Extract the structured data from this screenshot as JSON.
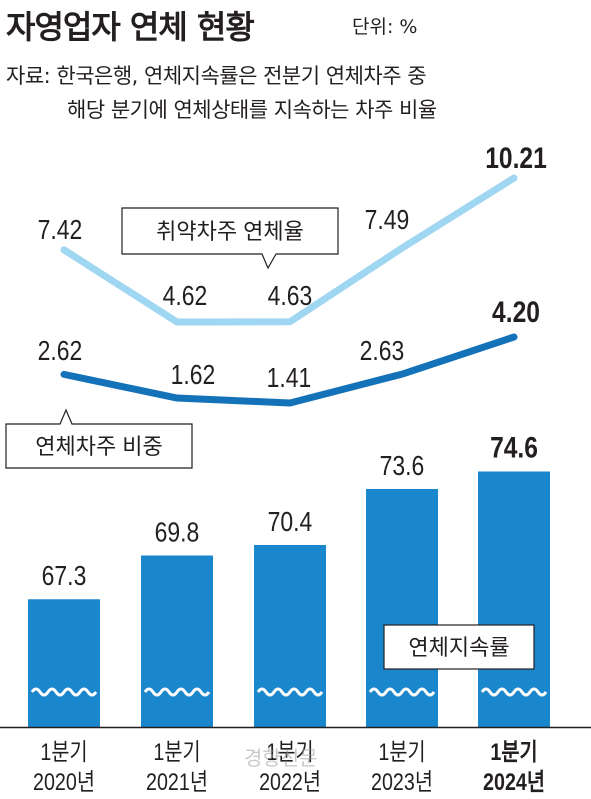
{
  "header": {
    "title": "자영업자 연체 현황",
    "unit": "단위: %",
    "source_line1": "자료: 한국은행, 연체지속률은 전분기 연체차주 중",
    "source_line2": "해당 분기에 연체상태를 지속하는 차주 비율"
  },
  "watermark": "경향신문",
  "colors": {
    "light_line": "#9fd6f2",
    "dark_line": "#1472b8",
    "bar": "#1a87cd",
    "wave": "#ffffff"
  },
  "chart_data": [
    {
      "type": "line",
      "series": [
        {
          "name": "취약차주 연체율",
          "values": [
            7.42,
            4.62,
            4.63,
            7.49,
            10.21
          ]
        },
        {
          "name": "연체차주 비중",
          "values": [
            2.62,
            1.62,
            1.41,
            2.63,
            4.2
          ]
        }
      ],
      "value_labels": {
        "취약차주 연체율": [
          "7.42",
          "4.62",
          "4.63",
          "7.49",
          "10.21"
        ],
        "연체차주 비중": [
          "2.62",
          "1.62",
          "1.41",
          "2.63",
          "4.20"
        ]
      },
      "categories": [
        "1분기 2020년",
        "1분기 2021년",
        "1분기 2022년",
        "1분기 2023년",
        "1분기 2024년"
      ]
    },
    {
      "type": "bar",
      "series": [
        {
          "name": "연체지속률",
          "values": [
            67.3,
            69.8,
            70.4,
            73.6,
            74.6
          ]
        }
      ],
      "value_labels": [
        "67.3",
        "69.8",
        "70.4",
        "73.6",
        "74.6"
      ],
      "categories": [
        "1분기 2020년",
        "1분기 2021년",
        "1분기 2022년",
        "1분기 2023년",
        "1분기 2024년"
      ],
      "x_tick_labels": [
        [
          "1분기",
          "2020년"
        ],
        [
          "1분기",
          "2021년"
        ],
        [
          "1분기",
          "2022년"
        ],
        [
          "1분기",
          "2023년"
        ],
        [
          "1분기",
          "2024년"
        ]
      ]
    }
  ]
}
